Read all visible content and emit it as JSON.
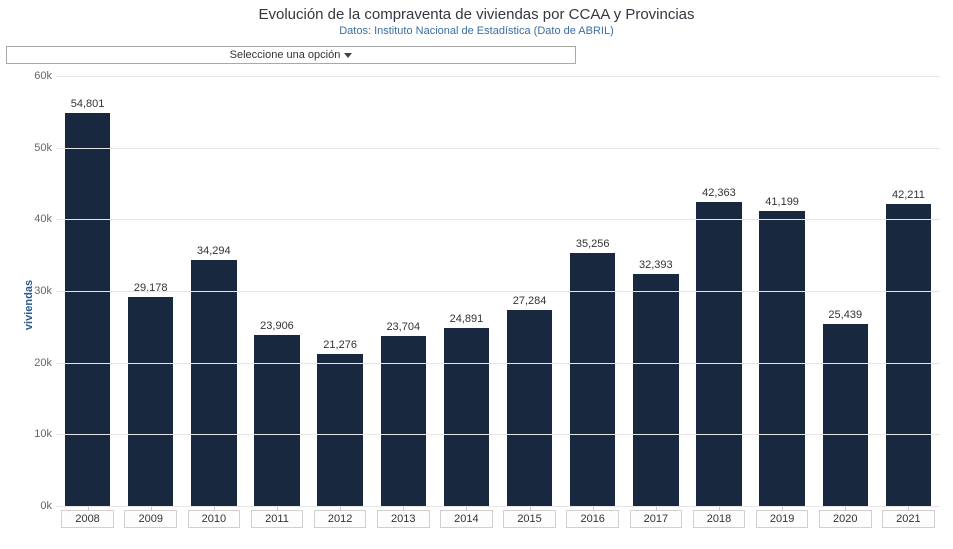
{
  "header": {
    "title": "Evolución de la compraventa de viviendas por CCAA y Provincias",
    "subtitle": "Datos: Instituto Nacional de Estadística (Dato de ABRIL)"
  },
  "selector": {
    "label": "Seleccione una opción"
  },
  "chart": {
    "type": "bar",
    "ylabel": "viviendas",
    "ylim": [
      0,
      60000
    ],
    "ytick_step": 10000,
    "yticks": [
      "0k",
      "10k",
      "20k",
      "30k",
      "40k",
      "50k",
      "60k"
    ],
    "categories": [
      "2008",
      "2009",
      "2010",
      "2011",
      "2012",
      "2013",
      "2014",
      "2015",
      "2016",
      "2017",
      "2018",
      "2019",
      "2020",
      "2021"
    ],
    "values": [
      54801,
      29178,
      34294,
      23906,
      21276,
      23704,
      24891,
      27284,
      35256,
      32393,
      42363,
      41199,
      25439,
      42211
    ],
    "value_labels": [
      "54,801",
      "29,178",
      "34,294",
      "23,906",
      "21,276",
      "23,704",
      "24,891",
      "27,284",
      "35,256",
      "32,393",
      "42,363",
      "41,199",
      "25,439",
      "42,211"
    ],
    "bar_color": "#17283f",
    "grid_color": "#e6e6e6",
    "background_color": "#ffffff",
    "title_color": "#333740",
    "subtitle_color": "#3a6ea5",
    "ylabel_color": "#2b5a8a",
    "tick_font_color": "#666666",
    "xtick_border_color": "#d0d0d0",
    "title_fontsize": 15,
    "subtitle_fontsize": 11,
    "label_fontsize": 11,
    "bar_width": 0.72
  }
}
